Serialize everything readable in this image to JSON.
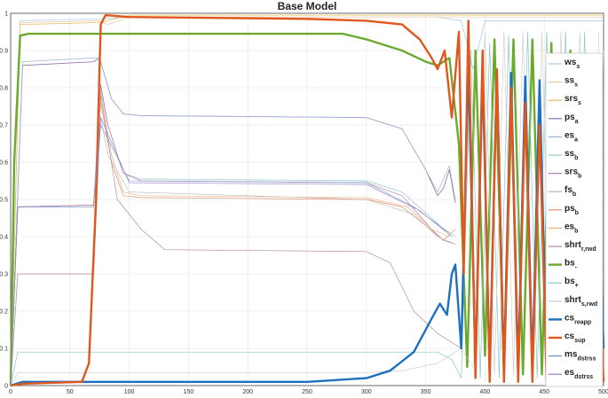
{
  "chart_data": {
    "type": "line",
    "title": "Base Model",
    "xlim": [
      0,
      500
    ],
    "ylim": [
      0,
      1
    ],
    "xticks": [
      "0",
      "50",
      "100",
      "150",
      "200",
      "250",
      "300",
      "350",
      "400",
      "450",
      "500"
    ],
    "yticks": [
      "0",
      "0.1",
      "0.2",
      "0.3",
      "0.4",
      "0.5",
      "0.6",
      "0.7",
      "0.8",
      "0.9",
      "1"
    ],
    "grid": true,
    "legend_position": "right",
    "series": [
      {
        "name": "ws",
        "sub": "s",
        "color": "#a9c6e6",
        "width": 0.7,
        "points": [
          [
            0,
            0
          ],
          [
            8,
            0.98
          ],
          [
            75,
            0.985
          ],
          [
            100,
            0.99
          ],
          [
            300,
            0.99
          ],
          [
            360,
            0.99
          ],
          [
            380,
            0.98
          ],
          [
            390,
            0.85
          ],
          [
            400,
            0.98
          ],
          [
            500,
            0.98
          ]
        ]
      },
      {
        "name": "ss",
        "sub": "s",
        "color": "#f3c29e",
        "width": 0.7,
        "points": [
          [
            0,
            0
          ],
          [
            8,
            0.975
          ],
          [
            75,
            0.98
          ],
          [
            82,
            0.97
          ],
          [
            100,
            0.99
          ],
          [
            500,
            0.99
          ]
        ]
      },
      {
        "name": "srs",
        "sub": "s",
        "color": "#e3c060",
        "width": 0.7,
        "points": [
          [
            0,
            0
          ],
          [
            8,
            0.97
          ],
          [
            75,
            0.975
          ],
          [
            100,
            0.995
          ],
          [
            500,
            0.995
          ]
        ]
      },
      {
        "name": "ps",
        "sub": "a",
        "color": "#8a6fa8",
        "width": 0.8,
        "points": [
          [
            0,
            0
          ],
          [
            10,
            0.86
          ],
          [
            70,
            0.87
          ],
          [
            75,
            0.88
          ],
          [
            85,
            0.77
          ],
          [
            95,
            0.73
          ],
          [
            110,
            0.725
          ],
          [
            300,
            0.72
          ],
          [
            330,
            0.69
          ],
          [
            350,
            0.58
          ],
          [
            360,
            0.51
          ],
          [
            365,
            0.53
          ],
          [
            370,
            0.58
          ],
          [
            375,
            0.49
          ]
        ]
      },
      {
        "name": "es",
        "sub": "a",
        "color": "#9bb5d6",
        "width": 0.7,
        "points": [
          [
            0,
            0
          ],
          [
            10,
            0.87
          ],
          [
            70,
            0.88
          ],
          [
            75,
            0.88
          ],
          [
            85,
            0.77
          ],
          [
            95,
            0.73
          ],
          [
            110,
            0.725
          ],
          [
            300,
            0.72
          ],
          [
            330,
            0.69
          ],
          [
            350,
            0.58
          ],
          [
            360,
            0.52
          ],
          [
            370,
            0.59
          ],
          [
            375,
            0.5
          ]
        ]
      },
      {
        "name": "ss",
        "sub": "b",
        "color": "#8cc7cc",
        "width": 0.7,
        "points": [
          [
            0,
            0
          ],
          [
            6,
            0.48
          ],
          [
            70,
            0.485
          ],
          [
            76,
            0.8
          ],
          [
            82,
            0.7
          ],
          [
            95,
            0.57
          ],
          [
            110,
            0.555
          ],
          [
            300,
            0.55
          ],
          [
            330,
            0.52
          ],
          [
            355,
            0.45
          ],
          [
            365,
            0.42
          ],
          [
            375,
            0.4
          ]
        ]
      },
      {
        "name": "srs",
        "sub": "b",
        "color": "#b07fb5",
        "width": 0.7,
        "points": [
          [
            0,
            0
          ],
          [
            6,
            0.48
          ],
          [
            70,
            0.485
          ],
          [
            76,
            0.81
          ],
          [
            82,
            0.7
          ],
          [
            95,
            0.57
          ],
          [
            110,
            0.55
          ],
          [
            300,
            0.545
          ],
          [
            330,
            0.51
          ],
          [
            355,
            0.42
          ],
          [
            365,
            0.39
          ],
          [
            375,
            0.38
          ]
        ]
      },
      {
        "name": "fs",
        "sub": "b",
        "color": "#b8b8b8",
        "width": 0.6,
        "points": [
          [
            0,
            0
          ],
          [
            6,
            0.3
          ],
          [
            70,
            0.3
          ],
          [
            76,
            0.72
          ],
          [
            82,
            0.62
          ],
          [
            100,
            0.52
          ],
          [
            300,
            0.5
          ],
          [
            340,
            0.46
          ],
          [
            360,
            0.4
          ],
          [
            375,
            0.38
          ]
        ]
      },
      {
        "name": "ps",
        "sub": "b",
        "color": "#e0906a",
        "width": 0.7,
        "points": [
          [
            0,
            0
          ],
          [
            6,
            0.48
          ],
          [
            70,
            0.485
          ],
          [
            76,
            0.76
          ],
          [
            85,
            0.6
          ],
          [
            95,
            0.51
          ],
          [
            110,
            0.505
          ],
          [
            300,
            0.5
          ],
          [
            330,
            0.48
          ],
          [
            350,
            0.43
          ],
          [
            365,
            0.39
          ],
          [
            375,
            0.42
          ]
        ]
      },
      {
        "name": "es",
        "sub": "b",
        "color": "#e8b080",
        "width": 0.6,
        "points": [
          [
            0,
            0
          ],
          [
            6,
            0.48
          ],
          [
            70,
            0.485
          ],
          [
            76,
            0.79
          ],
          [
            85,
            0.62
          ],
          [
            95,
            0.52
          ],
          [
            110,
            0.51
          ],
          [
            300,
            0.505
          ],
          [
            335,
            0.48
          ],
          [
            355,
            0.42
          ],
          [
            370,
            0.4
          ]
        ]
      },
      {
        "name": "shrt",
        "sub": "r,rwd",
        "color": "#b98aa0",
        "width": 0.7,
        "points": [
          [
            0,
            0
          ],
          [
            6,
            0.3
          ],
          [
            70,
            0.3
          ],
          [
            76,
            0.78
          ],
          [
            90,
            0.5
          ],
          [
            110,
            0.42
          ],
          [
            130,
            0.365
          ],
          [
            300,
            0.36
          ],
          [
            320,
            0.33
          ],
          [
            340,
            0.2
          ],
          [
            360,
            0.14
          ],
          [
            380,
            0.1
          ]
        ]
      },
      {
        "name": "bs",
        "sub": "-",
        "color": "#6aab2e",
        "width": 2.4,
        "points": [
          [
            0,
            0
          ],
          [
            3,
            0.6
          ],
          [
            8,
            0.94
          ],
          [
            15,
            0.945
          ],
          [
            280,
            0.945
          ],
          [
            300,
            0.93
          ],
          [
            330,
            0.9
          ],
          [
            350,
            0.87
          ],
          [
            360,
            0.86
          ],
          [
            370,
            0.88
          ],
          [
            378,
            0.65
          ],
          [
            385,
            0.05
          ],
          [
            392,
            0.9
          ],
          [
            400,
            0.08
          ],
          [
            408,
            0.93
          ],
          [
            416,
            0.04
          ],
          [
            424,
            0.93
          ],
          [
            432,
            0.03
          ],
          [
            440,
            0.93
          ],
          [
            448,
            0.03
          ],
          [
            456,
            0.92
          ],
          [
            464,
            0.02
          ],
          [
            472,
            0.9
          ],
          [
            480,
            0.02
          ],
          [
            488,
            0.88
          ],
          [
            496,
            0.02
          ]
        ]
      },
      {
        "name": "bs",
        "sub": "+",
        "color": "#86c9c0",
        "width": 0.7,
        "points": [
          [
            0,
            0
          ],
          [
            6,
            0.09
          ],
          [
            300,
            0.09
          ],
          [
            360,
            0.09
          ],
          [
            372,
            0.07
          ],
          [
            380,
            0.02
          ],
          [
            388,
            0.9
          ],
          [
            396,
            0.02
          ],
          [
            404,
            0.92
          ],
          [
            412,
            0.02
          ],
          [
            420,
            0.94
          ],
          [
            428,
            0.02
          ],
          [
            436,
            0.95
          ],
          [
            444,
            0.02
          ],
          [
            452,
            0.95
          ],
          [
            460,
            0.02
          ],
          [
            468,
            0.95
          ],
          [
            476,
            0.02
          ],
          [
            484,
            0.95
          ],
          [
            492,
            0.02
          ],
          [
            500,
            0.9
          ]
        ]
      },
      {
        "name": "shrt",
        "sub": "s,rwd",
        "color": "#c9c9c9",
        "width": 0.6,
        "points": [
          [
            0,
            0
          ],
          [
            6,
            0.035
          ],
          [
            300,
            0.035
          ],
          [
            330,
            0.04
          ],
          [
            360,
            0.06
          ],
          [
            380,
            0.1
          ],
          [
            390,
            0.05
          ],
          [
            400,
            0.95
          ],
          [
            408,
            0.03
          ],
          [
            416,
            0.95
          ],
          [
            424,
            0.03
          ],
          [
            432,
            0.95
          ],
          [
            440,
            0.03
          ],
          [
            448,
            0.95
          ],
          [
            456,
            0.03
          ],
          [
            464,
            0.95
          ],
          [
            472,
            0.03
          ],
          [
            480,
            0.95
          ],
          [
            488,
            0.03
          ],
          [
            496,
            0.95
          ]
        ]
      },
      {
        "name": "cs",
        "sub": "reapp",
        "color": "#1f6fc0",
        "width": 2.4,
        "points": [
          [
            0,
            0
          ],
          [
            10,
            0.01
          ],
          [
            100,
            0.01
          ],
          [
            250,
            0.01
          ],
          [
            300,
            0.02
          ],
          [
            320,
            0.04
          ],
          [
            340,
            0.09
          ],
          [
            355,
            0.18
          ],
          [
            362,
            0.22
          ],
          [
            368,
            0.19
          ],
          [
            372,
            0.3
          ],
          [
            375,
            0.325
          ],
          [
            380,
            0.1
          ],
          [
            386,
            0.86
          ],
          [
            392,
            0.05
          ],
          [
            398,
            0.84
          ],
          [
            404,
            0.04
          ],
          [
            410,
            0.84
          ],
          [
            416,
            0.04
          ],
          [
            422,
            0.84
          ],
          [
            428,
            0.04
          ],
          [
            434,
            0.83
          ],
          [
            440,
            0.04
          ],
          [
            446,
            0.82
          ],
          [
            452,
            0.04
          ],
          [
            458,
            0.8
          ],
          [
            464,
            0.04
          ],
          [
            470,
            0.78
          ],
          [
            476,
            0.05
          ],
          [
            482,
            0.76
          ],
          [
            488,
            0.06
          ],
          [
            494,
            0.72
          ],
          [
            500,
            0.1
          ]
        ]
      },
      {
        "name": "cs",
        "sub": "sup",
        "color": "#e0571d",
        "width": 2.4,
        "points": [
          [
            0,
            0
          ],
          [
            10,
            0.005
          ],
          [
            60,
            0.01
          ],
          [
            66,
            0.06
          ],
          [
            72,
            0.5
          ],
          [
            76,
            0.97
          ],
          [
            80,
            0.995
          ],
          [
            100,
            0.99
          ],
          [
            250,
            0.985
          ],
          [
            300,
            0.98
          ],
          [
            330,
            0.97
          ],
          [
            345,
            0.93
          ],
          [
            355,
            0.88
          ],
          [
            360,
            0.85
          ],
          [
            366,
            0.9
          ],
          [
            372,
            0.72
          ],
          [
            378,
            0.95
          ],
          [
            382,
            0.3
          ],
          [
            386,
            0.98
          ],
          [
            392,
            0.02
          ],
          [
            398,
            0.9
          ],
          [
            404,
            0.01
          ],
          [
            410,
            0.85
          ],
          [
            416,
            0.01
          ],
          [
            422,
            0.8
          ],
          [
            428,
            0.01
          ],
          [
            434,
            0.76
          ],
          [
            440,
            0.01
          ],
          [
            446,
            0.7
          ],
          [
            452,
            0.01
          ],
          [
            458,
            0.65
          ],
          [
            464,
            0.01
          ],
          [
            470,
            0.6
          ],
          [
            476,
            0.01
          ],
          [
            482,
            0.55
          ],
          [
            488,
            0.01
          ],
          [
            494,
            0.5
          ],
          [
            500,
            0.01
          ]
        ]
      },
      {
        "name": "ms",
        "sub": "dstrss",
        "color": "#6b8fc4",
        "width": 0.6,
        "points": [
          [
            0,
            0
          ],
          [
            6,
            0.48
          ],
          [
            70,
            0.48
          ],
          [
            76,
            0.7
          ],
          [
            100,
            0.55
          ],
          [
            300,
            0.545
          ],
          [
            340,
            0.48
          ],
          [
            370,
            0.41
          ]
        ]
      },
      {
        "name": "es",
        "sub": "dstrss",
        "color": "#9a7cc0",
        "width": 0.6,
        "points": [
          [
            0,
            0
          ],
          [
            6,
            0.48
          ],
          [
            70,
            0.485
          ],
          [
            76,
            0.72
          ],
          [
            100,
            0.545
          ],
          [
            300,
            0.54
          ],
          [
            345,
            0.47
          ],
          [
            372,
            0.4
          ]
        ]
      }
    ]
  }
}
